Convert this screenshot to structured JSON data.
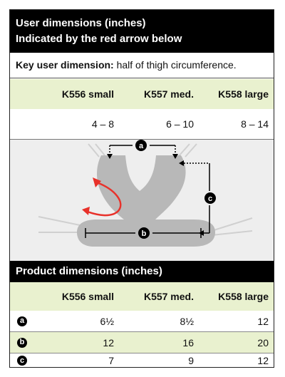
{
  "user_section": {
    "title_line1": "User dimensions (inches)",
    "title_line2": "Indicated by the red arrow below",
    "key_label": "Key user dimension:",
    "key_text": " half of thigh circumference.",
    "columns": [
      "K556 small",
      "K557 med.",
      "K558 large"
    ],
    "values": [
      "4 – 8",
      "6 – 10",
      "8 – 14"
    ]
  },
  "diagram": {
    "labels": {
      "a": "a",
      "b": "b",
      "c": "c"
    }
  },
  "product_section": {
    "title": "Product dimensions (inches)",
    "columns": [
      "K556 small",
      "K557 med.",
      "K558 large"
    ],
    "rows": [
      {
        "label": "a",
        "values": [
          "6½",
          "8½",
          "12"
        ]
      },
      {
        "label": "b",
        "values": [
          "12",
          "16",
          "20"
        ]
      },
      {
        "label": "c",
        "values": [
          "7",
          "9",
          "12"
        ]
      }
    ]
  },
  "colors": {
    "band": "#e9f1cf",
    "arrow": "#e8312a",
    "shape": "#b8b8b8"
  }
}
